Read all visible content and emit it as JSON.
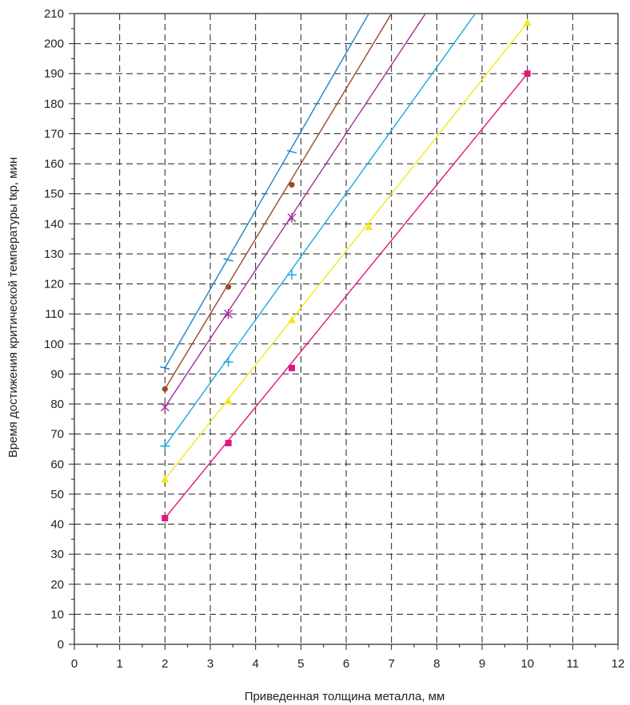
{
  "chart_data": {
    "type": "line",
    "title": "",
    "xlabel": "Приведенная толщина металла, мм",
    "ylabel": "Время достижения критической температуры tкр, мин",
    "xlim": [
      0,
      12
    ],
    "ylim": [
      0,
      210
    ],
    "xticks": [
      0,
      1,
      2,
      3,
      4,
      5,
      6,
      7,
      8,
      9,
      10,
      11,
      12
    ],
    "yticks": [
      0,
      10,
      20,
      30,
      40,
      50,
      60,
      70,
      80,
      90,
      100,
      110,
      120,
      130,
      140,
      150,
      160,
      170,
      180,
      190,
      200,
      210
    ],
    "grid": "dashed",
    "legend": "none",
    "series": [
      {
        "color": "#1a86c8",
        "marker": "dash",
        "points": [
          [
            2,
            92
          ],
          [
            3.4,
            128
          ],
          [
            4.8,
            164
          ]
        ],
        "line": [
          [
            2,
            92
          ],
          [
            6.5,
            210
          ]
        ]
      },
      {
        "color": "#9a4a2c",
        "marker": "circle",
        "points": [
          [
            2,
            85
          ],
          [
            3.4,
            119
          ],
          [
            4.8,
            153
          ]
        ],
        "line": [
          [
            2,
            85
          ],
          [
            7.0,
            210
          ]
        ]
      },
      {
        "color": "#a0309a",
        "marker": "asterisk",
        "points": [
          [
            2,
            79
          ],
          [
            3.4,
            110
          ],
          [
            4.8,
            142
          ]
        ],
        "line": [
          [
            2,
            79
          ],
          [
            7.75,
            210
          ]
        ]
      },
      {
        "color": "#1aa8e0",
        "marker": "plus",
        "points": [
          [
            2,
            66
          ],
          [
            3.4,
            94
          ],
          [
            4.8,
            123
          ]
        ],
        "line": [
          [
            2,
            66
          ],
          [
            8.85,
            210
          ]
        ]
      },
      {
        "color": "#f4e81c",
        "marker": "triangle",
        "points": [
          [
            2,
            55
          ],
          [
            3.4,
            81
          ],
          [
            4.8,
            108
          ],
          [
            6.5,
            139
          ],
          [
            10,
            207
          ]
        ],
        "line": [
          [
            2,
            55
          ],
          [
            10,
            207
          ]
        ]
      },
      {
        "color": "#e0157f",
        "marker": "square",
        "points": [
          [
            2,
            42
          ],
          [
            3.4,
            67
          ],
          [
            4.8,
            92
          ],
          [
            10,
            190
          ]
        ],
        "line": [
          [
            2,
            42
          ],
          [
            10,
            190
          ]
        ]
      }
    ]
  }
}
